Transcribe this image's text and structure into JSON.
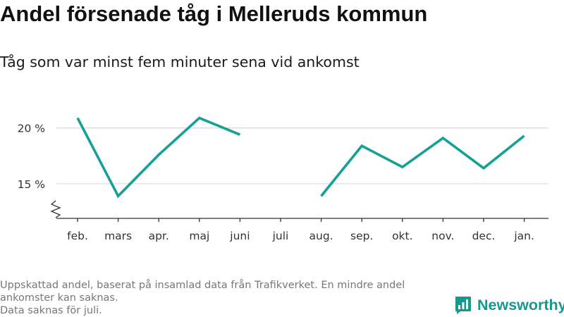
{
  "title": "Andel försenade tåg i Melleruds kommun",
  "subtitle": "Tåg som var minst fem minuter sena vid ankomst",
  "footnote": {
    "line1": "Uppskattad andel, baserat på insamlad data från Trafikverket. En mindre andel ankomster kan saknas.",
    "line2": "Data saknas för juli."
  },
  "brand": {
    "name": "Newsworthy",
    "logo_icon": "newsworthy-bar-chart-logo-icon"
  },
  "colors": {
    "line": "#16a096",
    "grid": "#dddddd",
    "axis": "#333333",
    "brand": "#16998d"
  },
  "chart_data": {
    "type": "line",
    "title": "Andel försenade tåg i Melleruds kommun",
    "subtitle": "Tåg som var minst fem minuter sena vid ankomst",
    "xlabel": "",
    "ylabel": "",
    "categories": [
      "feb.",
      "mars",
      "apr.",
      "maj",
      "juni",
      "juli",
      "aug.",
      "sep.",
      "okt.",
      "nov.",
      "dec.",
      "jan."
    ],
    "series": [
      {
        "values": [
          20.9,
          13.9,
          17.6,
          20.9,
          19.4,
          null,
          13.9,
          18.4,
          16.5,
          19.1,
          16.4,
          19.3
        ]
      }
    ],
    "y_ticks": [
      {
        "value": 15,
        "label": "15 %"
      },
      {
        "value": 20,
        "label": "20 %"
      }
    ],
    "ylim": [
      11.9,
      22
    ],
    "y_axis_break": true,
    "grid": true,
    "legend": "none"
  }
}
